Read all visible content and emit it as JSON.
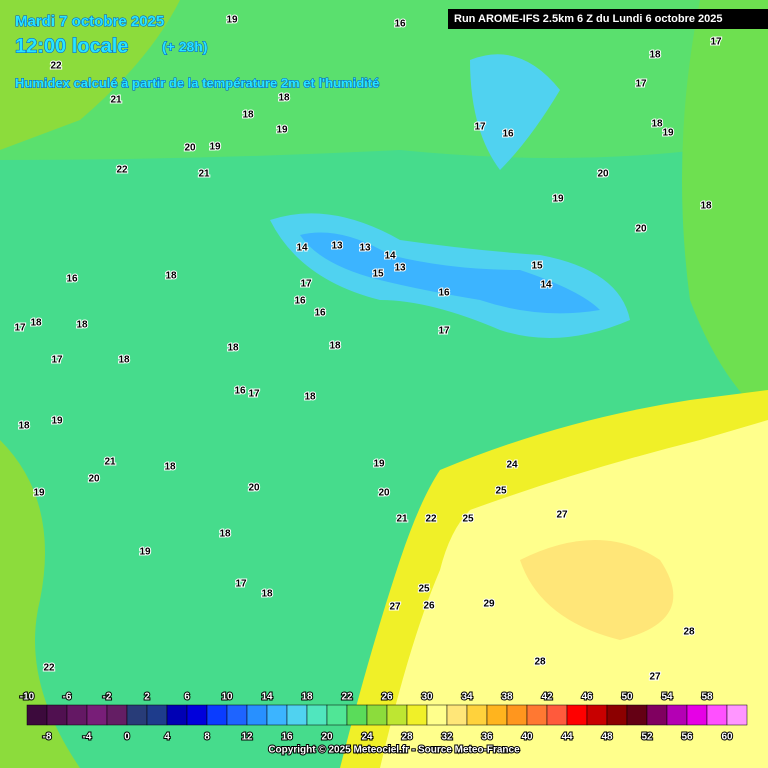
{
  "header": {
    "date": "Mardi 7 octobre 2025",
    "time": "12:00 locale",
    "lead": "(+ 28h)",
    "field": "Humidex calculé à partir de la température 2m et l'humidité",
    "run": "Run AROME-IFS 2.5km 6 Z du Lundi 6 octobre 2025"
  },
  "contour_labels": [
    19,
    16,
    18,
    17,
    22,
    21,
    17,
    18,
    18,
    19,
    17,
    16,
    18,
    19,
    20,
    19,
    22,
    21,
    20,
    19,
    18,
    20,
    14,
    13,
    13,
    14,
    13,
    15,
    15,
    14,
    16,
    16,
    18,
    17,
    16,
    16,
    17,
    18,
    18,
    17,
    18,
    18,
    17,
    18,
    16,
    17,
    18,
    18,
    19,
    21,
    18,
    20,
    19,
    24,
    19,
    20,
    20,
    25,
    21,
    22,
    25,
    27,
    18,
    19,
    25,
    17,
    18,
    27,
    26,
    29,
    28,
    28,
    22,
    27
  ],
  "colorbar": {
    "colors": [
      "#3c0a3c",
      "#501050",
      "#641864",
      "#781e78",
      "#641e64",
      "#283c78",
      "#1e3c8c",
      "#0000b4",
      "#0000dc",
      "#0a3cff",
      "#1e64ff",
      "#2890ff",
      "#3cb4ff",
      "#50d2f0",
      "#50e6be",
      "#50e696",
      "#5adc5a",
      "#8cdc3c",
      "#bee632",
      "#f0f028",
      "#ffff8c",
      "#ffe678",
      "#ffd23c",
      "#ffb41e",
      "#ff961e",
      "#ff7832",
      "#ff5a3c",
      "#ff0000",
      "#c80000",
      "#8c0000",
      "#640014",
      "#800060",
      "#b400b4",
      "#e600e6",
      "#ff50ff",
      "#ff96ff"
    ],
    "ticks_top": [
      -10,
      -6,
      -2,
      2,
      6,
      10,
      14,
      18,
      22,
      26,
      30,
      34,
      38,
      42,
      46,
      50,
      54,
      58
    ],
    "ticks_bottom": [
      -8,
      -4,
      0,
      4,
      8,
      12,
      16,
      20,
      24,
      28,
      32,
      36,
      40,
      44,
      48,
      52,
      56,
      60
    ]
  },
  "copyright": "Copyright © 2025 Meteociel.fr - Source Meteo-France"
}
